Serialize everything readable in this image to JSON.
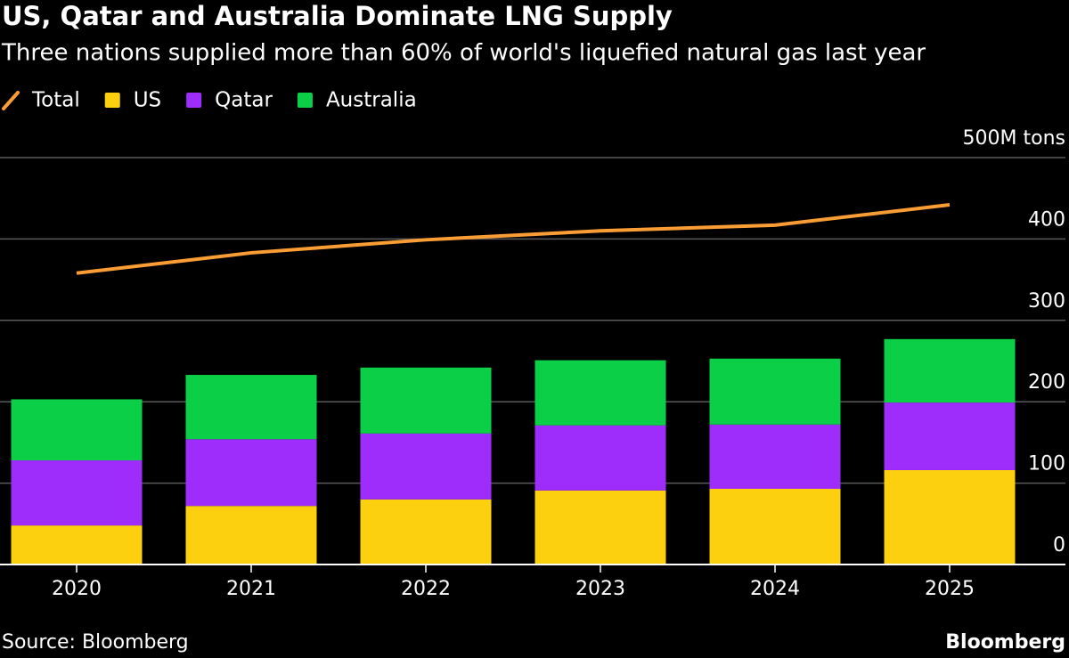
{
  "chart_data": {
    "type": "bar",
    "stacked": true,
    "title": "US, Qatar and Australia Dominate LNG Supply",
    "subtitle": "Three nations supplied more than 60% of world's liquefied natural gas last year",
    "source": "Source: Bloomberg",
    "brand": "Bloomberg",
    "categories": [
      "2020",
      "2021",
      "2022",
      "2023",
      "2024",
      "2025"
    ],
    "series": [
      {
        "name": "Total",
        "type": "line",
        "color": "#fb9d35",
        "values": [
          358,
          383,
          399,
          410,
          417,
          442
        ]
      },
      {
        "name": "US",
        "color": "#fdd00f",
        "values": [
          48,
          72,
          80,
          91,
          93,
          116
        ]
      },
      {
        "name": "Qatar",
        "color": "#9e2cfa",
        "values": [
          80,
          82,
          81,
          80,
          79,
          83
        ]
      },
      {
        "name": "Australia",
        "color": "#0ccf48",
        "values": [
          75,
          79,
          81,
          80,
          81,
          78
        ]
      }
    ],
    "ylim": [
      0,
      500
    ],
    "yticks": [
      0,
      100,
      200,
      300,
      400,
      {
        "value": 500,
        "label": "500M tons"
      }
    ],
    "grid": true
  }
}
